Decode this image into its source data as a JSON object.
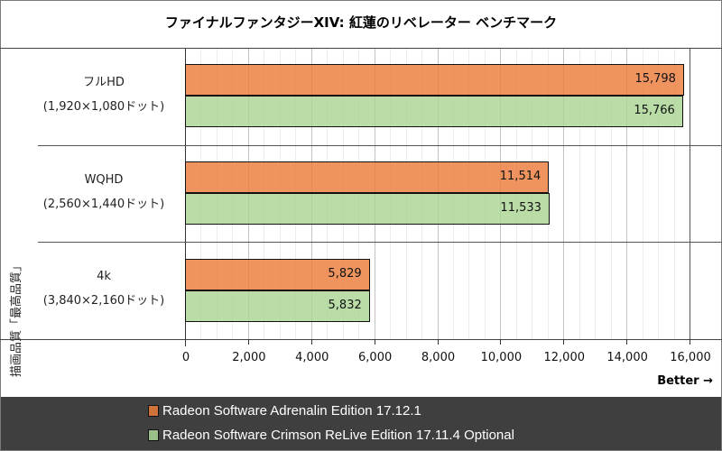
{
  "chart_data": {
    "type": "bar",
    "orientation": "horizontal",
    "title": "ファイナルファンタジーXIV: 紅蓮のリベレーター ベンチマーク",
    "ylabel": "描画品質「最高品質」",
    "xlabel": "Better →",
    "xlim": [
      0,
      16000
    ],
    "xticks": [
      0,
      2000,
      4000,
      6000,
      8000,
      10000,
      12000,
      14000,
      16000
    ],
    "xtick_labels": [
      "0",
      "2,000",
      "4,000",
      "6,000",
      "8,000",
      "10,000",
      "12,000",
      "14,000",
      "16,000"
    ],
    "grid": true,
    "legend_position": "bottom",
    "categories": [
      {
        "name": "フルHD",
        "sub": "(1,920×1,080ドット)"
      },
      {
        "name": "WQHD",
        "sub": "(2,560×1,440ドット)"
      },
      {
        "name": "4k",
        "sub": "(3,840×2,160ドット)"
      }
    ],
    "series": [
      {
        "name": "Radeon Software Adrenalin Edition 17.12.1",
        "color": "#EC7D3C",
        "values": [
          15798,
          11514,
          5829
        ],
        "labels": [
          "15,798",
          "11,514",
          "5,829"
        ]
      },
      {
        "name": "Radeon Software Crimson ReLive Edition 17.11.4 Optional",
        "color": "#A9D491",
        "values": [
          15766,
          11533,
          5832
        ],
        "labels": [
          "15,766",
          "11,533",
          "5,832"
        ]
      }
    ]
  },
  "colors": {
    "legend_bg": "#3F3F3F",
    "series0": "#EC7D3C",
    "series1": "#A9D491"
  }
}
